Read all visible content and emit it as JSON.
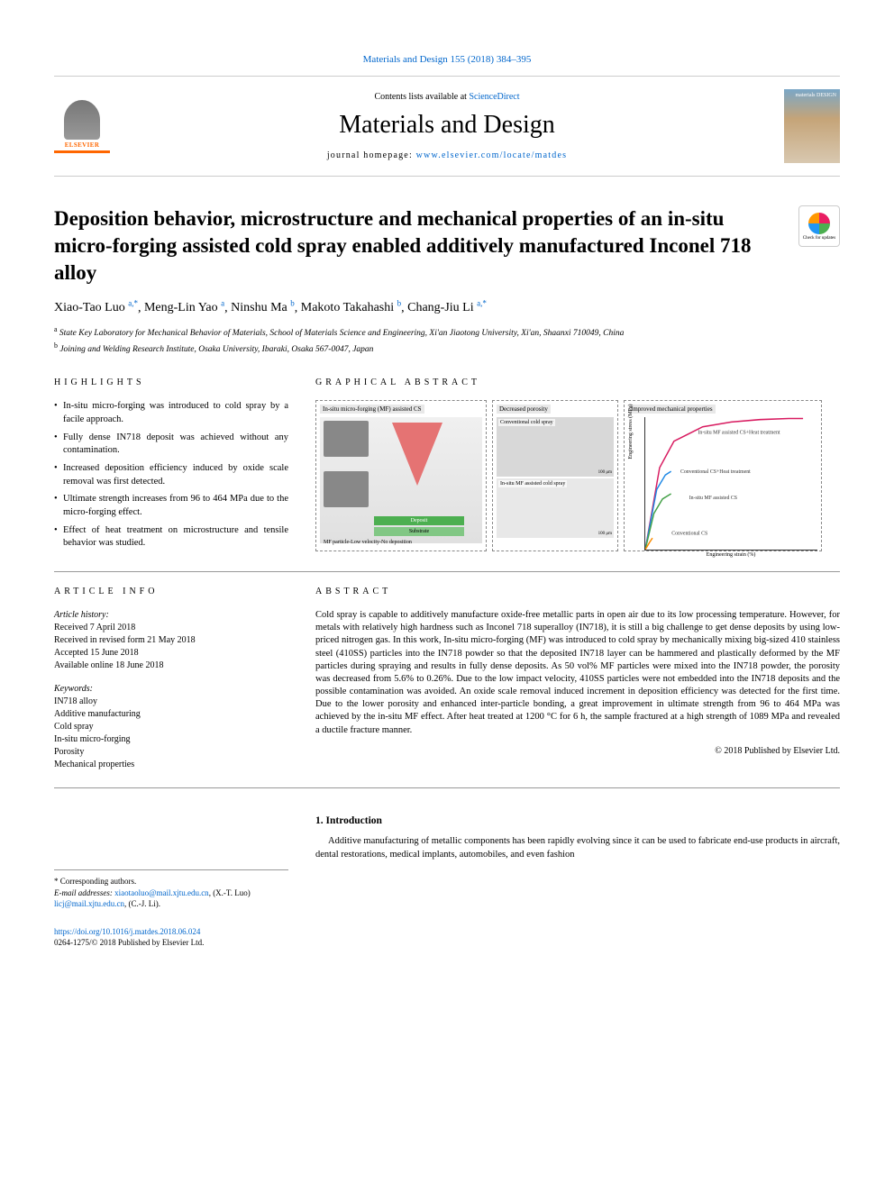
{
  "journal_ref": "Materials and Design 155 (2018) 384–395",
  "contents_prefix": "Contents lists available at ",
  "contents_link": "ScienceDirect",
  "journal_name": "Materials and Design",
  "homepage_prefix": "journal homepage: ",
  "homepage_url": "www.elsevier.com/locate/matdes",
  "elsevier_label": "ELSEVIER",
  "cover_title": "materials\nDESIGN",
  "check_updates": "Check for updates",
  "title": "Deposition behavior, microstructure and mechanical properties of an in-situ micro-forging assisted cold spray enabled additively manufactured Inconel 718 alloy",
  "authors": [
    {
      "name": "Xiao-Tao Luo",
      "sup": "a,*"
    },
    {
      "name": "Meng-Lin Yao",
      "sup": "a"
    },
    {
      "name": "Ninshu Ma",
      "sup": "b"
    },
    {
      "name": "Makoto Takahashi",
      "sup": "b"
    },
    {
      "name": "Chang-Jiu Li",
      "sup": "a,*"
    }
  ],
  "affiliations": [
    {
      "sup": "a",
      "text": "State Key Laboratory for Mechanical Behavior of Materials, School of Materials Science and Engineering, Xi'an Jiaotong University, Xi'an, Shaanxi 710049, China"
    },
    {
      "sup": "b",
      "text": "Joining and Welding Research Institute, Osaka University, Ibaraki, Osaka 567-0047, Japan"
    }
  ],
  "highlights_heading": "HIGHLIGHTS",
  "highlights": [
    "In-situ micro-forging was introduced to cold spray by a facile approach.",
    "Fully dense IN718 deposit was achieved without any contamination.",
    "Increased deposition efficiency induced by oxide scale removal was first detected.",
    "Ultimate strength increases from 96 to 464 MPa due to the micro-forging effect.",
    "Effect of heat treatment on microstructure and tensile behavior was studied."
  ],
  "ga_heading": "GRAPHICAL ABSTRACT",
  "ga": {
    "panel1": {
      "label": "In-situ micro-forging (MF) assisted CS",
      "sem1": "IN718 powder",
      "mixed": "Mixed powder",
      "sem1_scale": "13 μm",
      "sem2": "MF powder",
      "sem2_scale": "150 μm",
      "nozzle": "De Laval nozzle",
      "rebound": "Rebound",
      "deposit": "Deposit",
      "substrate": "Substrate",
      "caption": "MF particle-Low velocity-No deposition"
    },
    "panel2": {
      "label": "Decreased porosity",
      "top_tag": "Conventional cold spray",
      "top_scale": "100 μm",
      "bottom_tag": "In-situ MF assisted cold spray",
      "bottom_scale": "100 μm"
    },
    "panel3": {
      "label": "Improved mechanical properties",
      "ylabel": "Engineering stress (MPa)",
      "xlabel": "Engineering strain (%)",
      "yticks": [
        "0",
        "200",
        "400",
        "600",
        "800",
        "1000"
      ],
      "xticks": [
        "0.0",
        "0.5",
        "1.0",
        "1.5",
        "2.0",
        "2.5",
        "3.0",
        "3.5",
        "4.0",
        "4.5",
        "5.0",
        "5.5",
        "6.0"
      ],
      "curves": [
        {
          "name": "In-situ MF assisted CS+Heat treatment",
          "color": "#d81b60",
          "points": [
            [
              0,
              0
            ],
            [
              0.5,
              680
            ],
            [
              1.0,
              900
            ],
            [
              2.0,
              1020
            ],
            [
              3.0,
              1060
            ],
            [
              4.0,
              1080
            ],
            [
              5.0,
              1089
            ],
            [
              5.5,
              1089
            ]
          ]
        },
        {
          "name": "Conventional CS+Heat treatment",
          "color": "#1e88e5",
          "points": [
            [
              0,
              0
            ],
            [
              0.4,
              500
            ],
            [
              0.7,
              620
            ],
            [
              0.9,
              650
            ]
          ]
        },
        {
          "name": "In-situ MF assisted CS",
          "color": "#43a047",
          "points": [
            [
              0,
              0
            ],
            [
              0.3,
              300
            ],
            [
              0.6,
              420
            ],
            [
              0.9,
              464
            ]
          ]
        },
        {
          "name": "Conventional CS",
          "color": "#fb8c00",
          "points": [
            [
              0,
              0
            ],
            [
              0.15,
              60
            ],
            [
              0.25,
              96
            ]
          ]
        }
      ],
      "ylim": [
        0,
        1100
      ],
      "xlim": [
        0,
        6
      ]
    }
  },
  "info_heading": "ARTICLE INFO",
  "history_label": "Article history:",
  "history": [
    "Received 7 April 2018",
    "Received in revised form 21 May 2018",
    "Accepted 15 June 2018",
    "Available online 18 June 2018"
  ],
  "keywords_label": "Keywords:",
  "keywords": [
    "IN718 alloy",
    "Additive manufacturing",
    "Cold spray",
    "In-situ micro-forging",
    "Porosity",
    "Mechanical properties"
  ],
  "abstract_heading": "ABSTRACT",
  "abstract": "Cold spray is capable to additively manufacture oxide-free metallic parts in open air due to its low processing temperature. However, for metals with relatively high hardness such as Inconel 718 superalloy (IN718), it is still a big challenge to get dense deposits by using low-priced nitrogen gas. In this work, In-situ micro-forging (MF) was introduced to cold spray by mechanically mixing big-sized 410 stainless steel (410SS) particles into the IN718 powder so that the deposited IN718 layer can be hammered and plastically deformed by the MF particles during spraying and results in fully dense deposits. As 50 vol% MF particles were mixed into the IN718 powder, the porosity was decreased from 5.6% to 0.26%. Due to the low impact velocity, 410SS particles were not embedded into the IN718 deposits and the possible contamination was avoided. An oxide scale removal induced increment in deposition efficiency was detected for the first time. Due to the lower porosity and enhanced inter-particle bonding, a great improvement in ultimate strength from 96 to 464 MPa was achieved by the in-situ MF effect. After heat treated at 1200 °C for 6 h, the sample fractured at a high strength of 1089 MPa and revealed a ductile fracture manner.",
  "copyright": "© 2018 Published by Elsevier Ltd.",
  "intro_heading": "1. Introduction",
  "intro_text": "Additive manufacturing of metallic components has been rapidly evolving since it can be used to fabricate end-use products in aircraft, dental restorations, medical implants, automobiles, and even fashion",
  "corresponding_label": "* Corresponding authors.",
  "email_label": "E-mail addresses:",
  "emails": [
    {
      "addr": "xiaotaoluo@mail.xjtu.edu.cn",
      "who": "(X.-T. Luo)"
    },
    {
      "addr": "licj@mail.xjtu.edu.cn",
      "who": "(C.-J. Li)."
    }
  ],
  "doi": "https://doi.org/10.1016/j.matdes.2018.06.024",
  "issn_line": "0264-1275/© 2018 Published by Elsevier Ltd."
}
